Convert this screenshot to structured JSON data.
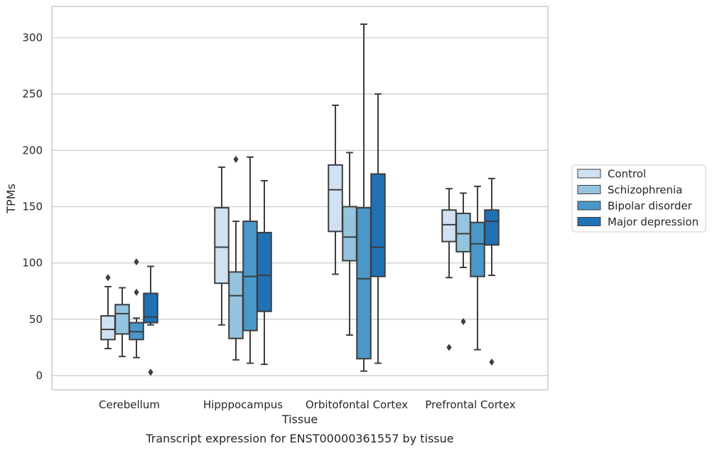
{
  "chart_data": {
    "type": "box",
    "caption": "Transcript expression for ENST00000361557 by tissue",
    "xlabel": "Tissue",
    "ylabel": "TPMs",
    "ylim": [
      -13,
      328
    ],
    "yticks": [
      0,
      50,
      100,
      150,
      200,
      250,
      300
    ],
    "grid": true,
    "legend_position": "right",
    "categories": [
      "Cerebellum",
      "Hipppocampus",
      "Orbitofontal Cortex",
      "Prefrontal Cortex"
    ],
    "series": [
      {
        "name": "Control",
        "color": "#d0e1f2",
        "boxes": [
          {
            "whisker_low": 24,
            "q1": 32,
            "median": 41,
            "q3": 53,
            "whisker_high": 79,
            "outliers": [
              87
            ]
          },
          {
            "whisker_low": 45,
            "q1": 82,
            "median": 114,
            "q3": 149,
            "whisker_high": 185,
            "outliers": []
          },
          {
            "whisker_low": 90,
            "q1": 128,
            "median": 165,
            "q3": 187,
            "whisker_high": 240,
            "outliers": []
          },
          {
            "whisker_low": 87,
            "q1": 119,
            "median": 134,
            "q3": 147,
            "whisker_high": 166,
            "outliers": [
              25
            ]
          }
        ]
      },
      {
        "name": "Schizophrenia",
        "color": "#94c4df",
        "boxes": [
          {
            "whisker_low": 17,
            "q1": 37,
            "median": 55,
            "q3": 63,
            "whisker_high": 78,
            "outliers": []
          },
          {
            "whisker_low": 14,
            "q1": 33,
            "median": 71,
            "q3": 92,
            "whisker_high": 137,
            "outliers": [
              192
            ]
          },
          {
            "whisker_low": 36,
            "q1": 102,
            "median": 123,
            "q3": 150,
            "whisker_high": 198,
            "outliers": []
          },
          {
            "whisker_low": 96,
            "q1": 110,
            "median": 126,
            "q3": 144,
            "whisker_high": 162,
            "outliers": [
              48
            ]
          }
        ]
      },
      {
        "name": "Bipolar disorder",
        "color": "#4a98c9",
        "boxes": [
          {
            "whisker_low": 16,
            "q1": 32,
            "median": 39,
            "q3": 47,
            "whisker_high": 51,
            "outliers": [
              101,
              74
            ]
          },
          {
            "whisker_low": 11,
            "q1": 40,
            "median": 88,
            "q3": 137,
            "whisker_high": 194,
            "outliers": []
          },
          {
            "whisker_low": 4,
            "q1": 15,
            "median": 86,
            "q3": 149,
            "whisker_high": 312,
            "outliers": []
          },
          {
            "whisker_low": 23,
            "q1": 88,
            "median": 117,
            "q3": 136,
            "whisker_high": 168,
            "outliers": []
          }
        ]
      },
      {
        "name": "Major depression",
        "color": "#2171b5",
        "boxes": [
          {
            "whisker_low": 45,
            "q1": 47,
            "median": 52,
            "q3": 73,
            "whisker_high": 97,
            "outliers": [
              3
            ]
          },
          {
            "whisker_low": 10,
            "q1": 57,
            "median": 89,
            "q3": 127,
            "whisker_high": 173,
            "outliers": []
          },
          {
            "whisker_low": 11,
            "q1": 88,
            "median": 114,
            "q3": 179,
            "whisker_high": 250,
            "outliers": []
          },
          {
            "whisker_low": 89,
            "q1": 116,
            "median": 137,
            "q3": 147,
            "whisker_high": 175,
            "outliers": [
              12
            ]
          }
        ]
      }
    ]
  }
}
